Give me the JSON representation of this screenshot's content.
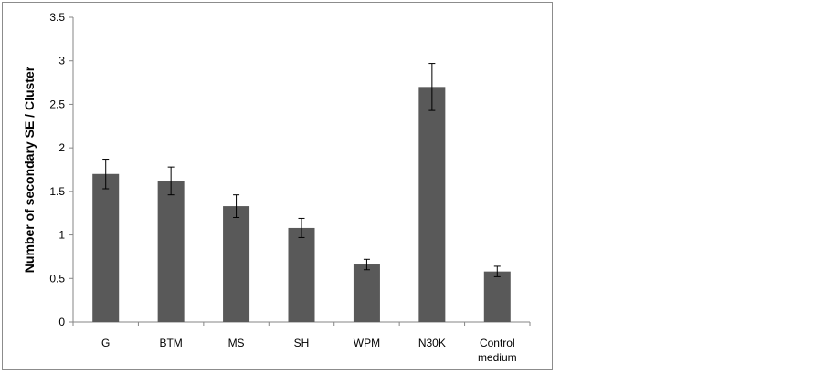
{
  "chart_data": {
    "type": "bar",
    "title": "",
    "xlabel": "",
    "ylabel": "Number of secondary SE / Cluster",
    "categories": [
      [
        "G"
      ],
      [
        "BTM"
      ],
      [
        "MS"
      ],
      [
        "SH"
      ],
      [
        "WPM"
      ],
      [
        "N30K"
      ],
      [
        "Control",
        "medium"
      ]
    ],
    "values": [
      1.7,
      1.62,
      1.33,
      1.08,
      0.66,
      2.7,
      0.58
    ],
    "errors": [
      0.17,
      0.16,
      0.13,
      0.11,
      0.06,
      0.27,
      0.06
    ],
    "ylim": [
      0,
      3.5
    ],
    "yticks": [
      "0",
      "0.5",
      "1",
      "1.5",
      "2",
      "2.5",
      "3",
      "3.5"
    ],
    "grid": false,
    "legend": "none",
    "bar_color": "#595959",
    "axis_color": "#868686"
  }
}
